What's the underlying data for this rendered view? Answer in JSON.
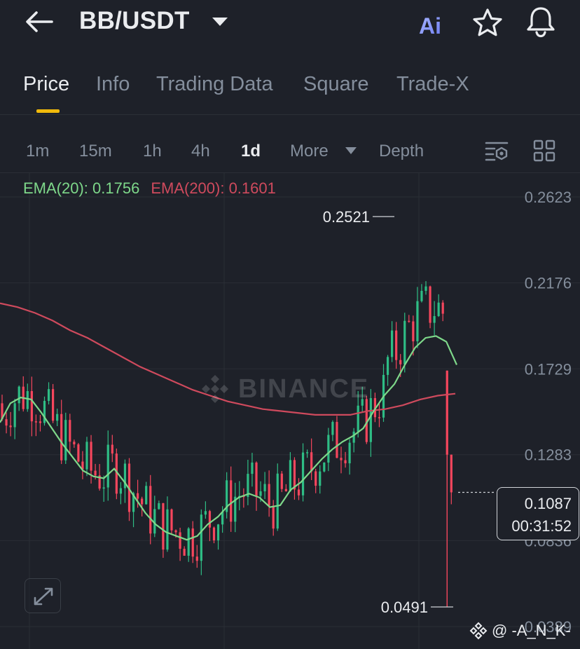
{
  "header": {
    "pair": "BB/USDT",
    "icons": [
      "back-arrow-icon",
      "dropdown-caret-icon",
      "ai-icon",
      "star-icon",
      "bell-icon"
    ],
    "ai_label": "Ai"
  },
  "tabs": [
    {
      "label": "Price",
      "active": true
    },
    {
      "label": "Info",
      "active": false
    },
    {
      "label": "Trading Data",
      "active": false
    },
    {
      "label": "Square",
      "active": false
    },
    {
      "label": "Trade-X",
      "active": false
    }
  ],
  "intervals": {
    "items": [
      {
        "label": "1m",
        "active": false
      },
      {
        "label": "15m",
        "active": false
      },
      {
        "label": "1h",
        "active": false
      },
      {
        "label": "4h",
        "active": false
      },
      {
        "label": "1d",
        "active": true
      }
    ],
    "more_label": "More",
    "depth_label": "Depth",
    "icons": [
      "chart-settings-icon",
      "layout-grid-icon"
    ]
  },
  "indicators": {
    "ema20": "EMA(20): 0.1756",
    "ema200": "EMA(200): 0.1601"
  },
  "chart_data": {
    "type": "line",
    "ema20_values": [
      0.145,
      0.155,
      0.158,
      0.157,
      0.15,
      0.142,
      0.134,
      0.127,
      0.12,
      0.117,
      0.116,
      0.121,
      0.114,
      0.106,
      0.098,
      0.092,
      0.088,
      0.086,
      0.084,
      0.086,
      0.092,
      0.096,
      0.102,
      0.106,
      0.108,
      0.106,
      0.101,
      0.102,
      0.11,
      0.114,
      0.12,
      0.126,
      0.131,
      0.135,
      0.138,
      0.142,
      0.151,
      0.159,
      0.165,
      0.175,
      0.184,
      0.189,
      0.19,
      0.187,
      0.175
    ],
    "ema200_values": [
      0.207,
      0.205,
      0.202,
      0.198,
      0.193,
      0.189,
      0.184,
      0.179,
      0.174,
      0.17,
      0.166,
      0.162,
      0.159,
      0.156,
      0.154,
      0.152,
      0.151,
      0.15,
      0.149,
      0.149,
      0.149,
      0.151,
      0.152,
      0.154,
      0.157,
      0.159,
      0.16
    ],
    "y_axis_ticks": [
      "0.2623",
      "0.2176",
      "0.1729",
      "0.1283",
      "0.0836",
      "0.0389"
    ],
    "ylim": [
      0.0389,
      0.2623
    ],
    "high_label": "0.2521",
    "low_label": "0.0491",
    "current_price": "0.1087",
    "countdown": "00:31:52",
    "candle_up_color": "#2ebd85",
    "candle_down_color": "#f6465d",
    "ema20_color": "#7ed88a",
    "ema200_color": "#cf4a5d"
  },
  "watermark": "BINANCE",
  "credit": "@ -A_N_K-"
}
